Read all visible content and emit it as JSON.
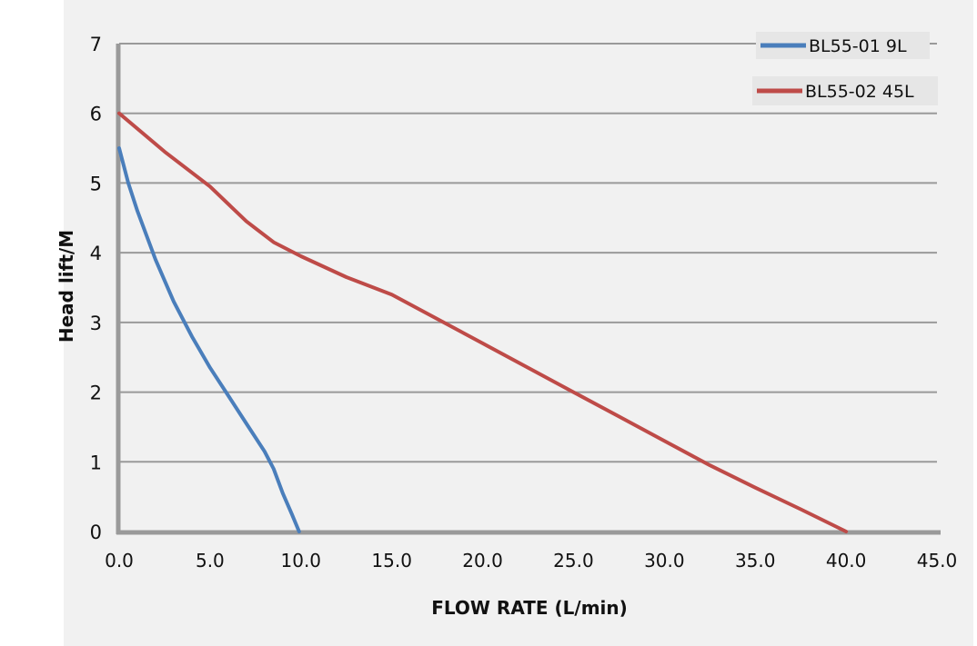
{
  "chart_data": {
    "type": "line",
    "title": "",
    "xlabel": "FLOW RATE (L/min)",
    "ylabel": "Head lift/M",
    "xlim": [
      0,
      45
    ],
    "ylim": [
      0,
      7
    ],
    "x_ticks": [
      "0.0",
      "5.0",
      "10.0",
      "15.0",
      "20.0",
      "25.0",
      "30.0",
      "35.0",
      "40.0",
      "45.0"
    ],
    "y_ticks": [
      "0",
      "1",
      "2",
      "3",
      "4",
      "5",
      "6",
      "7"
    ],
    "grid": true,
    "legend_position": "top-right",
    "series": [
      {
        "name": "BL55-01 9L",
        "color": "#4a7ebb",
        "points": [
          [
            0,
            5.5
          ],
          [
            0.5,
            5.0
          ],
          [
            1.0,
            4.6
          ],
          [
            2.0,
            3.9
          ],
          [
            3.0,
            3.3
          ],
          [
            4.0,
            2.8
          ],
          [
            5.0,
            2.35
          ],
          [
            6.0,
            1.95
          ],
          [
            7.0,
            1.55
          ],
          [
            8.0,
            1.15
          ],
          [
            8.5,
            0.9
          ],
          [
            9.0,
            0.55
          ],
          [
            9.5,
            0.25
          ],
          [
            9.9,
            0.0
          ]
        ]
      },
      {
        "name": "BL55-02 45L",
        "color": "#be4b48",
        "points": [
          [
            0,
            6.0
          ],
          [
            2.5,
            5.45
          ],
          [
            5.0,
            4.95
          ],
          [
            7.0,
            4.45
          ],
          [
            8.5,
            4.15
          ],
          [
            10.0,
            3.95
          ],
          [
            12.5,
            3.65
          ],
          [
            15.0,
            3.4
          ],
          [
            17.5,
            3.05
          ],
          [
            20.0,
            2.7
          ],
          [
            22.5,
            2.35
          ],
          [
            25.0,
            2.0
          ],
          [
            27.5,
            1.65
          ],
          [
            30.0,
            1.3
          ],
          [
            32.5,
            0.95
          ],
          [
            35.0,
            0.63
          ],
          [
            37.5,
            0.32
          ],
          [
            40.0,
            0.0
          ]
        ]
      }
    ]
  }
}
